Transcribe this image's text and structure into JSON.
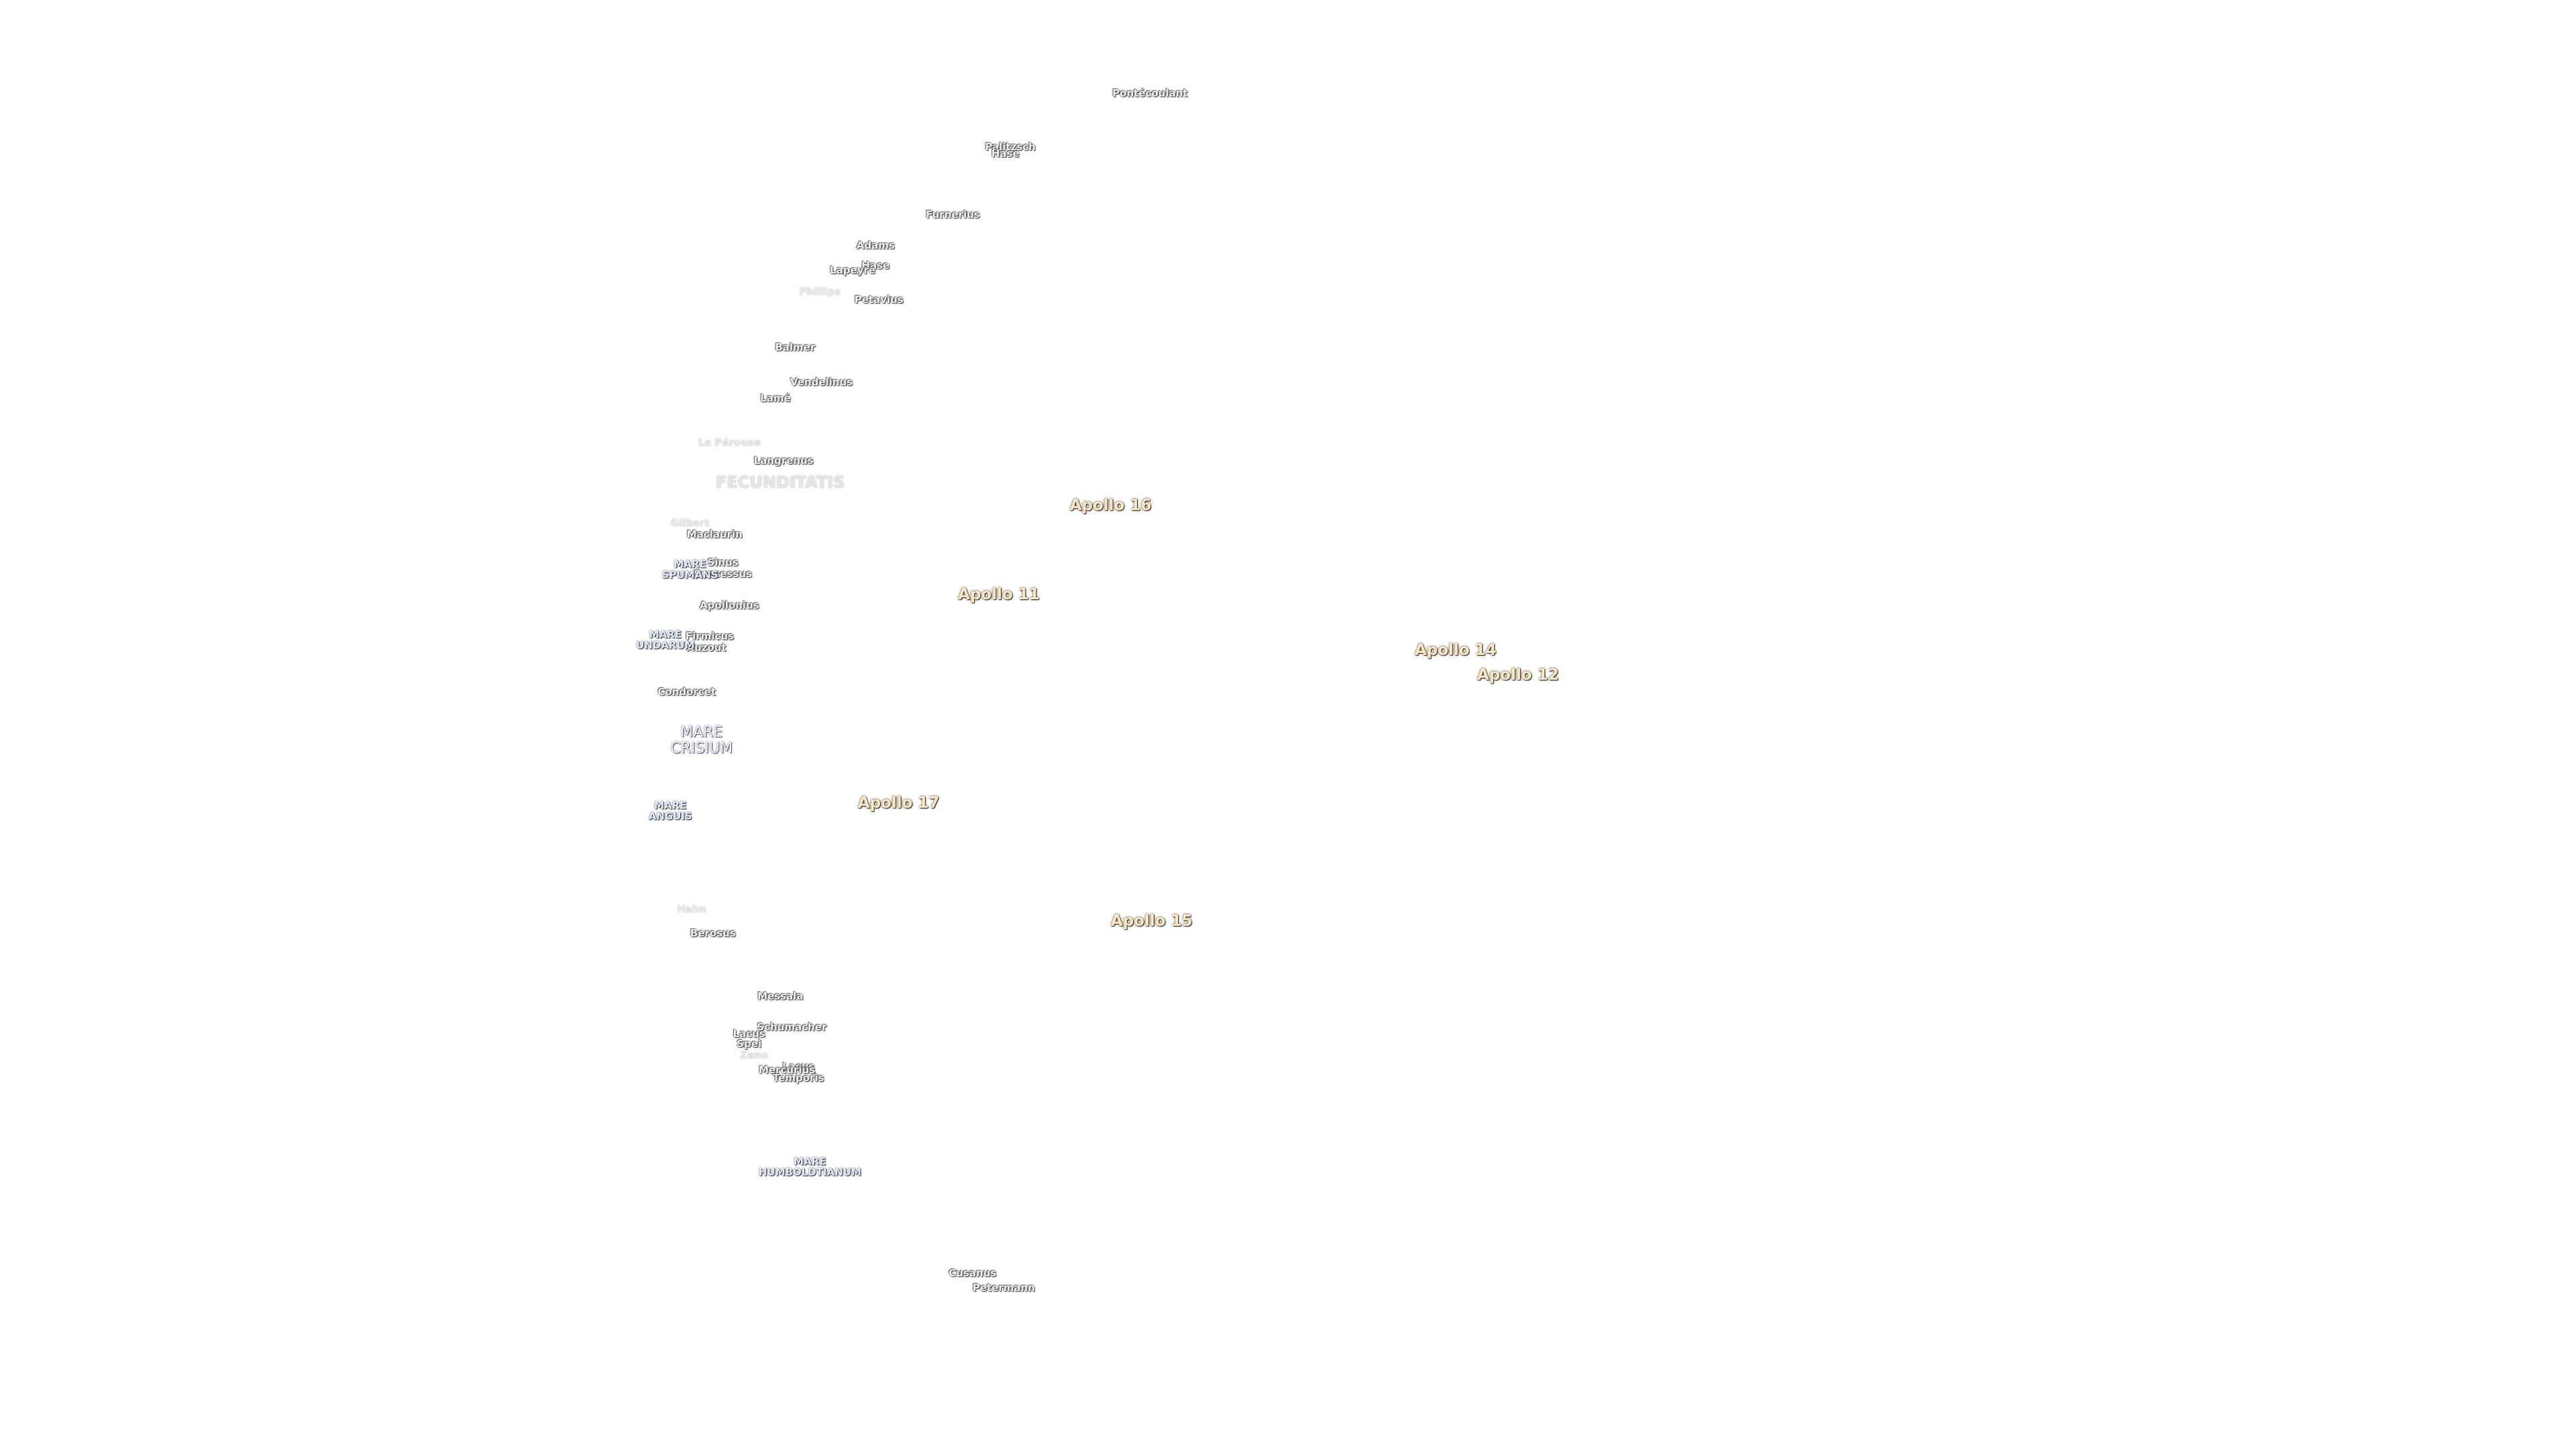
{
  "craters": [
    "Pontécoulant",
    "Palitzsch",
    "Hase",
    "Furnerius",
    "Adams",
    "Hase",
    "Lapeyre",
    "Petavius",
    "Balmer",
    "Vendelinus",
    "Lamé",
    "Langrenus",
    "Maclaurin",
    "Sinus",
    "Successus",
    "Apollonius",
    "Firmicus",
    "Auzout",
    "Condorcet",
    "Berosus",
    "Messala",
    "Schumacher",
    "Lacus",
    "Spei",
    "Lacus",
    "Temporis",
    "Mercurius",
    "Cusanus",
    "Petermann"
  ],
  "faint_craters": [
    "Phillips",
    "La Pérouse",
    "Gilbert",
    "Hahn",
    "Zeno"
  ],
  "maria": [
    [
      "MARE",
      "SPUMANS"
    ],
    [
      "MARE",
      "UNDARUM"
    ],
    [
      "MARE",
      "ANGUIS"
    ],
    [
      "MARE",
      "HUMBOLDTIANUM"
    ]
  ],
  "large_maria": [
    [
      "MARE",
      "CRISIUM"
    ]
  ],
  "pale_maria": [
    [
      "FECUNDITATIS"
    ]
  ],
  "landing_sites": [
    "Apollo 16",
    "Apollo 11",
    "Apollo 14",
    "Apollo 12",
    "Apollo 17",
    "Apollo 15"
  ]
}
